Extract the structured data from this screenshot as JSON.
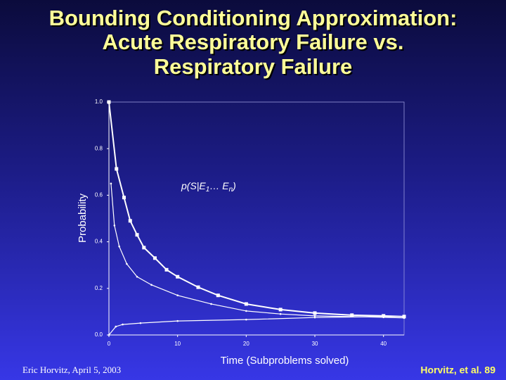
{
  "chart_data": {
    "type": "line",
    "title": [
      "Bounding Conditioning Approximation:",
      "Acute Respiratory Failure vs.",
      "Respiratory Failure"
    ],
    "ylabel": "Probability",
    "xlabel": "Time (Subproblems solved)",
    "annotation": {
      "parts": [
        "p(S|E",
        "1",
        "… E",
        "n",
        ")"
      ]
    },
    "footer_left": "Eric Horvitz, April 5, 2003",
    "footer_right": "Horvitz, et al. 89",
    "xlim": [
      0,
      43
    ],
    "ylim": [
      0,
      1
    ],
    "xticks": [
      0,
      10,
      20,
      30,
      40
    ],
    "yticks": [
      {
        "value": 0,
        "label": "0.0"
      },
      0.2,
      0.4,
      0.6,
      0.8,
      {
        "value": 1,
        "label": "1.0"
      }
    ],
    "series": [
      {
        "color": "#ffffff",
        "markers": true,
        "x": [
          0,
          1.1,
          2.2,
          3.1,
          4.1,
          5.1,
          6.7,
          8.4,
          10,
          13,
          15.9,
          20,
          25,
          30,
          35.4,
          40,
          43
        ],
        "values": [
          1.0,
          0.713,
          0.59,
          0.49,
          0.43,
          0.375,
          0.33,
          0.28,
          0.25,
          0.205,
          0.17,
          0.133,
          0.109,
          0.094,
          0.085,
          0.082,
          0.079
        ]
      },
      {
        "color": "#ffffff",
        "markers": false,
        "x": [
          0.3,
          0.8,
          1.5,
          2.6,
          4.1,
          6.2,
          10,
          14.9,
          20,
          25,
          30,
          40,
          43
        ],
        "values": [
          0.65,
          0.47,
          0.38,
          0.305,
          0.25,
          0.215,
          0.17,
          0.133,
          0.103,
          0.09,
          0.082,
          0.076,
          0.073
        ]
      },
      {
        "color": "#ffffff",
        "markers": false,
        "x": [
          0,
          1,
          2,
          4.6,
          10,
          20,
          30,
          40,
          43
        ],
        "values": [
          0,
          0.036,
          0.045,
          0.051,
          0.06,
          0.066,
          0.075,
          0.079,
          0.079
        ]
      }
    ]
  }
}
